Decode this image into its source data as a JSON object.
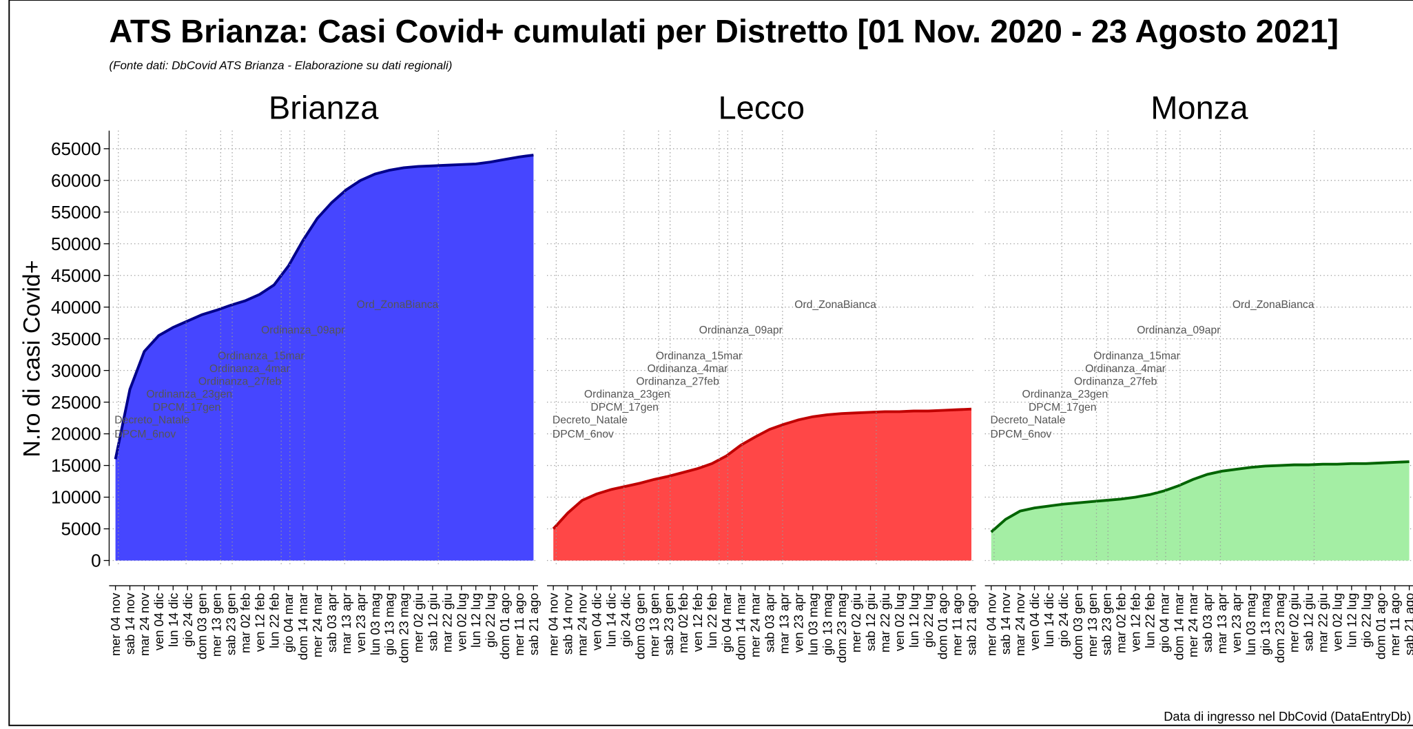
{
  "title": "ATS Brianza: Casi Covid+ cumulati per Distretto [01 Nov. 2020 - 23 Agosto 2021]",
  "subtitle": "(Fonte dati: DbCovid ATS Brianza - Elaborazione su dati regionali)",
  "y_label": "N.ro di casi Covid+",
  "footnote": "Data di ingresso nel DbCovid (DataEntryDb)",
  "chart_data": [
    {
      "type": "area",
      "title": "Brianza",
      "color": "#4646ff",
      "line_color": "#00008b",
      "categories": [
        "mer 04 nov",
        "sab 14 nov",
        "mar 24 nov",
        "ven 04 dic",
        "lun 14 dic",
        "gio 24 dic",
        "dom 03 gen",
        "mer 13 gen",
        "sab 23 gen",
        "mar 02 feb",
        "ven 12 feb",
        "lun 22 feb",
        "gio 04 mar",
        "dom 14 mar",
        "mer 24 mar",
        "sab 03 apr",
        "mar 13 apr",
        "ven 23 apr",
        "lun 03 mag",
        "gio 13 mag",
        "dom 23 mag",
        "mer 02 giu",
        "sab 12 giu",
        "mar 22 giu",
        "ven 02 lug",
        "lun 12 lug",
        "gio 22 lug",
        "dom 01 ago",
        "mer 11 ago",
        "sab 21 ago"
      ],
      "values": [
        16000,
        27000,
        33000,
        35500,
        36800,
        37800,
        38800,
        39500,
        40300,
        41000,
        42000,
        43500,
        46500,
        50500,
        54000,
        56500,
        58500,
        60000,
        61000,
        61600,
        62000,
        62200,
        62300,
        62400,
        62500,
        62600,
        62900,
        63300,
        63700,
        64000
      ],
      "ylim": [
        -850,
        67850
      ],
      "yticks": [
        0,
        5000,
        10000,
        15000,
        20000,
        25000,
        30000,
        35000,
        40000,
        45000,
        50000,
        55000,
        60000,
        65000
      ],
      "grid": true,
      "annotations": [
        {
          "label": "DPCM_6nov",
          "x": 0.2,
          "y": 20000
        },
        {
          "label": "Decreto_Natale",
          "x": 4.9,
          "y": 22200
        },
        {
          "label": "DPCM_17gen",
          "x": 7.3,
          "y": 24200
        },
        {
          "label": "Ordinanza_23gen",
          "x": 8.1,
          "y": 26300
        },
        {
          "label": "Ordinanza_27feb",
          "x": 11.5,
          "y": 28300
        },
        {
          "label": "Ordinanza_4mar",
          "x": 12.1,
          "y": 30300
        },
        {
          "label": "Ordinanza_15mar",
          "x": 13.1,
          "y": 32300
        },
        {
          "label": "Ordinanza_09apr",
          "x": 15.9,
          "y": 36400
        },
        {
          "label": "Ord_ZonaBianca",
          "x": 22.4,
          "y": 40400
        }
      ]
    },
    {
      "type": "area",
      "title": "Lecco",
      "color": "#ff4747",
      "line_color": "#c00000",
      "categories": [
        "mer 04 nov",
        "sab 14 nov",
        "mar 24 nov",
        "ven 04 dic",
        "lun 14 dic",
        "gio 24 dic",
        "dom 03 gen",
        "mer 13 gen",
        "sab 23 gen",
        "mar 02 feb",
        "ven 12 feb",
        "lun 22 feb",
        "gio 04 mar",
        "dom 14 mar",
        "mer 24 mar",
        "sab 03 apr",
        "mar 13 apr",
        "ven 23 apr",
        "lun 03 mag",
        "gio 13 mag",
        "dom 23 mag",
        "mer 02 giu",
        "sab 12 giu",
        "mar 22 giu",
        "ven 02 lug",
        "lun 12 lug",
        "gio 22 lug",
        "dom 01 ago",
        "mer 11 ago",
        "sab 21 ago"
      ],
      "values": [
        5000,
        7500,
        9500,
        10500,
        11200,
        11700,
        12200,
        12800,
        13300,
        13900,
        14500,
        15300,
        16500,
        18200,
        19500,
        20700,
        21500,
        22200,
        22700,
        23000,
        23200,
        23300,
        23400,
        23500,
        23500,
        23600,
        23600,
        23700,
        23800,
        23900
      ],
      "ylim": [
        -850,
        67850
      ],
      "yticks": [
        0,
        5000,
        10000,
        15000,
        20000,
        25000,
        30000,
        35000,
        40000,
        45000,
        50000,
        55000,
        60000,
        65000
      ],
      "grid": true,
      "annotations": [
        {
          "label": "DPCM_6nov",
          "x": 0.2,
          "y": 20000
        },
        {
          "label": "Decreto_Natale",
          "x": 4.9,
          "y": 22200
        },
        {
          "label": "DPCM_17gen",
          "x": 7.3,
          "y": 24200
        },
        {
          "label": "Ordinanza_23gen",
          "x": 8.1,
          "y": 26300
        },
        {
          "label": "Ordinanza_27feb",
          "x": 11.5,
          "y": 28300
        },
        {
          "label": "Ordinanza_4mar",
          "x": 12.1,
          "y": 30300
        },
        {
          "label": "Ordinanza_15mar",
          "x": 13.1,
          "y": 32300
        },
        {
          "label": "Ordinanza_09apr",
          "x": 15.9,
          "y": 36400
        },
        {
          "label": "Ord_ZonaBianca",
          "x": 22.4,
          "y": 40400
        }
      ]
    },
    {
      "type": "area",
      "title": "Monza",
      "color": "#a4eea4",
      "line_color": "#006400",
      "categories": [
        "mer 04 nov",
        "sab 14 nov",
        "mar 24 nov",
        "ven 04 dic",
        "lun 14 dic",
        "gio 24 dic",
        "dom 03 gen",
        "mer 13 gen",
        "sab 23 gen",
        "mar 02 feb",
        "ven 12 feb",
        "lun 22 feb",
        "gio 04 mar",
        "dom 14 mar",
        "mer 24 mar",
        "sab 03 apr",
        "mar 13 apr",
        "ven 23 apr",
        "lun 03 mag",
        "gio 13 mag",
        "dom 23 mag",
        "mer 02 giu",
        "sab 12 giu",
        "mar 22 giu",
        "ven 02 lug",
        "lun 12 lug",
        "gio 22 lug",
        "dom 01 ago",
        "mer 11 ago",
        "sab 21 ago"
      ],
      "values": [
        4500,
        6500,
        7800,
        8300,
        8600,
        8900,
        9100,
        9300,
        9500,
        9700,
        10000,
        10400,
        11000,
        11800,
        12800,
        13600,
        14100,
        14400,
        14700,
        14900,
        15000,
        15100,
        15100,
        15200,
        15200,
        15300,
        15300,
        15400,
        15500,
        15600
      ],
      "ylim": [
        -850,
        67850
      ],
      "yticks": [
        0,
        5000,
        10000,
        15000,
        20000,
        25000,
        30000,
        35000,
        40000,
        45000,
        50000,
        55000,
        60000,
        65000
      ],
      "grid": true,
      "annotations": [
        {
          "label": "DPCM_6nov",
          "x": 0.2,
          "y": 20000
        },
        {
          "label": "Decreto_Natale",
          "x": 4.9,
          "y": 22200
        },
        {
          "label": "DPCM_17gen",
          "x": 7.3,
          "y": 24200
        },
        {
          "label": "Ordinanza_23gen",
          "x": 8.1,
          "y": 26300
        },
        {
          "label": "Ordinanza_27feb",
          "x": 11.5,
          "y": 28300
        },
        {
          "label": "Ordinanza_4mar",
          "x": 12.1,
          "y": 30300
        },
        {
          "label": "Ordinanza_15mar",
          "x": 13.1,
          "y": 32300
        },
        {
          "label": "Ordinanza_09apr",
          "x": 15.9,
          "y": 36400
        },
        {
          "label": "Ord_ZonaBianca",
          "x": 22.4,
          "y": 40400
        }
      ]
    }
  ]
}
